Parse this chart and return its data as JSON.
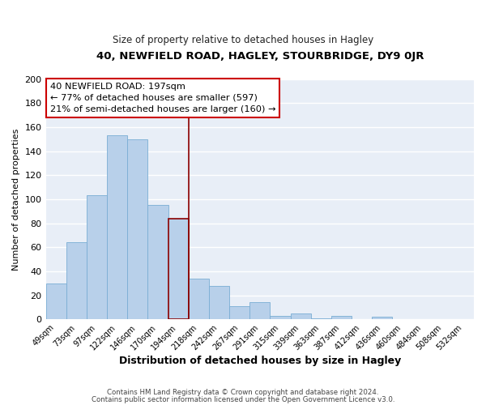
{
  "title_line1": "40, NEWFIELD ROAD, HAGLEY, STOURBRIDGE, DY9 0JR",
  "title_line2": "Size of property relative to detached houses in Hagley",
  "xlabel": "Distribution of detached houses by size in Hagley",
  "ylabel": "Number of detached properties",
  "bar_labels": [
    "49sqm",
    "73sqm",
    "97sqm",
    "122sqm",
    "146sqm",
    "170sqm",
    "194sqm",
    "218sqm",
    "242sqm",
    "267sqm",
    "291sqm",
    "315sqm",
    "339sqm",
    "363sqm",
    "387sqm",
    "412sqm",
    "436sqm",
    "460sqm",
    "484sqm",
    "508sqm",
    "532sqm"
  ],
  "bar_values": [
    30,
    64,
    103,
    153,
    150,
    95,
    84,
    34,
    28,
    11,
    14,
    3,
    5,
    1,
    3,
    0,
    2,
    0,
    0,
    0,
    0
  ],
  "highlight_bar_index": 6,
  "bar_color_normal": "#b8d0ea",
  "bar_edge_color": "#7aadd4",
  "highlight_edge_color": "#8b0000",
  "highlight_vline_color": "#8b0000",
  "ylim": [
    0,
    200
  ],
  "yticks": [
    0,
    20,
    40,
    60,
    80,
    100,
    120,
    140,
    160,
    180,
    200
  ],
  "annotation_title": "40 NEWFIELD ROAD: 197sqm",
  "annotation_line1": "← 77% of detached houses are smaller (597)",
  "annotation_line2": "21% of semi-detached houses are larger (160) →",
  "annotation_box_color": "#ffffff",
  "annotation_box_edge": "#cc0000",
  "footer_line1": "Contains HM Land Registry data © Crown copyright and database right 2024.",
  "footer_line2": "Contains public sector information licensed under the Open Government Licence v3.0.",
  "plot_bg_color": "#e8eef7",
  "fig_bg_color": "#ffffff",
  "grid_color": "#ffffff"
}
